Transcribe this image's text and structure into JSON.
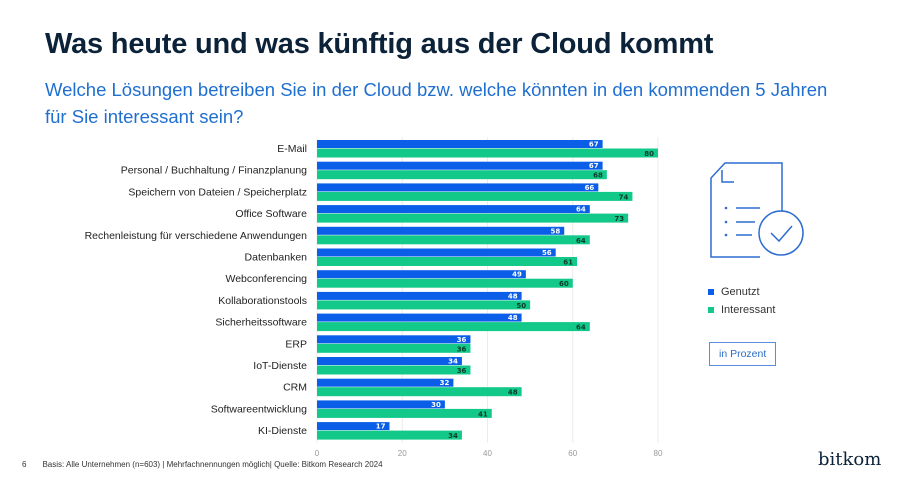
{
  "header": {
    "title": "Was heute und was künftig aus der Cloud kommt",
    "subtitle": "Welche Lösungen betreiben Sie in der Cloud bzw. welche könnten in den kommenden 5 Jahren für Sie interessant sein?"
  },
  "chart_data": {
    "type": "bar",
    "orientation": "horizontal",
    "categories": [
      "E-Mail",
      "Personal / Buchhaltung / Finanzplanung",
      "Speichern von Dateien / Speicherplatz",
      "Office Software",
      "Rechenleistung für verschiedene Anwendungen",
      "Datenbanken",
      "Webconferencing",
      "Kollaborationstools",
      "Sicherheitssoftware",
      "ERP",
      "IoT-Dienste",
      "CRM",
      "Softwareentwicklung",
      "KI-Dienste"
    ],
    "series": [
      {
        "name": "Genutzt",
        "color": "#0a5ee8",
        "values": [
          67,
          67,
          66,
          64,
          58,
          56,
          49,
          48,
          48,
          36,
          34,
          32,
          30,
          17
        ]
      },
      {
        "name": "Interessant",
        "color": "#12c98a",
        "values": [
          80,
          68,
          74,
          73,
          64,
          61,
          60,
          50,
          64,
          36,
          36,
          48,
          41,
          34
        ]
      }
    ],
    "xlim": [
      0,
      80
    ],
    "xticks": [
      "0",
      "20",
      "40",
      "60",
      "80"
    ],
    "grid": true,
    "legend": "right",
    "unit_label": "in Prozent"
  },
  "footer": {
    "page": "6",
    "note": "Basis: Alle Unternehmen (n=603) | Mehrfachnennungen möglich| Quelle: Bitkom Research 2024"
  },
  "logo": "bitkom",
  "icon": "document-check-icon"
}
